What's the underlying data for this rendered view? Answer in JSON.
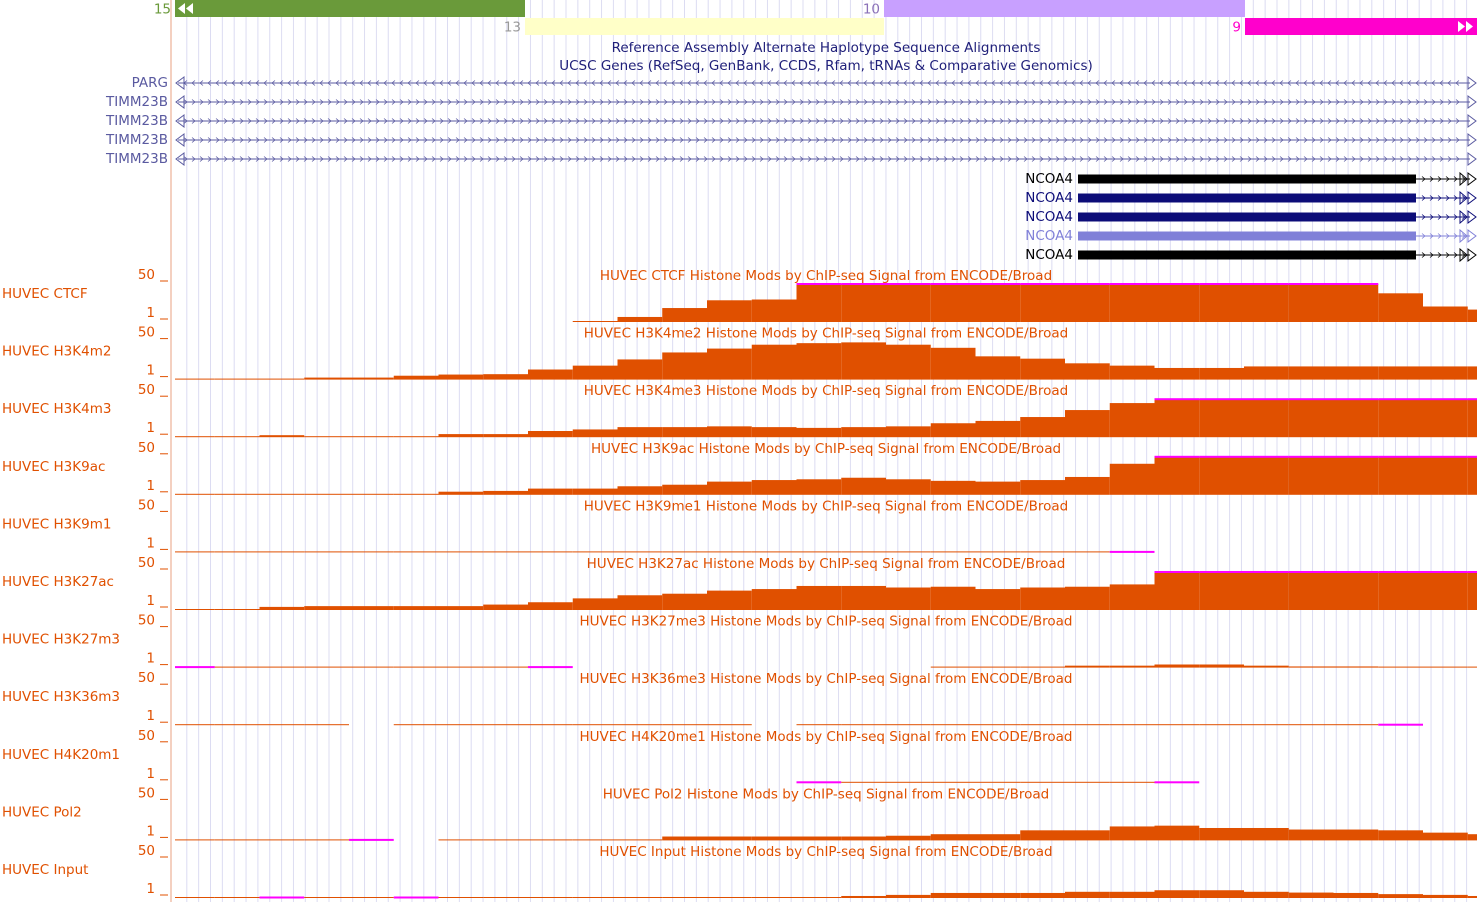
{
  "ideogram": [
    {
      "label": "15",
      "color": "#6a9a3a",
      "row": "top",
      "arrows": "left"
    },
    {
      "label": "13",
      "color": "#ffffc8",
      "row": "bottom"
    },
    {
      "label": "10",
      "color": "#c8a0ff",
      "row": "top"
    },
    {
      "label": "9",
      "color": "#ff00cc",
      "row": "bottom",
      "arrows": "right"
    }
  ],
  "haplotype_title": "Reference Assembly Alternate Haplotype Sequence Alignments",
  "genes_title": "UCSC Genes (RefSeq, GenBank, CCDS, Rfam, tRNAs & Comparative Genomics)",
  "genes": [
    {
      "name": "PARG",
      "color": "#5a5aa0"
    },
    {
      "name": "TIMM23B",
      "color": "#5a5aa0"
    },
    {
      "name": "TIMM23B",
      "color": "#5a5aa0"
    },
    {
      "name": "TIMM23B",
      "color": "#5a5aa0"
    },
    {
      "name": "TIMM23B",
      "color": "#5a5aa0"
    }
  ],
  "ncoa4_genes": [
    {
      "name": "NCOA4",
      "color": "#000000"
    },
    {
      "name": "NCOA4",
      "color": "#0c0c78"
    },
    {
      "name": "NCOA4",
      "color": "#0c0c78"
    },
    {
      "name": "NCOA4",
      "color": "#8080d8"
    },
    {
      "name": "NCOA4",
      "color": "#000000"
    }
  ],
  "signal_color": "#e05000",
  "clip_color": "#ff00ff",
  "ylim": [
    1,
    50
  ],
  "signal_tracks": [
    {
      "label": "HUVEC CTCF",
      "title": "HUVEC CTCF Histone Mods by ChIP-seq Signal from ENCODE/Broad",
      "values": [
        null,
        null,
        null,
        null,
        null,
        null,
        null,
        null,
        null,
        1.2,
        7.5,
        19,
        29,
        30,
        60,
        60,
        60,
        60,
        60,
        60,
        60,
        60,
        60,
        60,
        60,
        60,
        60,
        38,
        21,
        17
      ]
    },
    {
      "label": "HUVEC H3K4m2",
      "title": "HUVEC H3K4me2 Histone Mods by ChIP-seq Signal from ENCODE/Broad",
      "values": [
        1,
        1,
        1,
        3.6,
        3.6,
        6,
        7.5,
        8,
        14,
        19,
        27,
        36,
        41,
        46,
        48,
        49,
        46,
        42,
        31,
        28,
        22,
        19,
        16,
        16,
        18,
        18,
        18,
        18,
        18,
        18
      ]
    },
    {
      "label": "HUVEC H3K4m3",
      "title": "HUVEC H3K4me3 Histone Mods by ChIP-seq Signal from ENCODE/Broad",
      "values": [
        1,
        1,
        3.6,
        1,
        1,
        1,
        5,
        5,
        9,
        11,
        14,
        14,
        15,
        14,
        13,
        14,
        15,
        19,
        22,
        27,
        36,
        45,
        60,
        60,
        60,
        60,
        60,
        60,
        60,
        60
      ]
    },
    {
      "label": "HUVEC H3K9ac",
      "title": "HUVEC H3K9ac Histone Mods by ChIP-seq Signal from ENCODE/Broad",
      "values": [
        1,
        1,
        1,
        1,
        1,
        1,
        5,
        6,
        9,
        9,
        12,
        14,
        18,
        20,
        21,
        23,
        21,
        19,
        18,
        20,
        24,
        41,
        60,
        60,
        60,
        60,
        60,
        60,
        60,
        60
      ]
    },
    {
      "label": "HUVEC H3K9m1",
      "title": "HUVEC H3K9me1 Histone Mods by ChIP-seq Signal from ENCODE/Broad",
      "values": [
        1,
        1,
        1,
        1,
        1,
        1,
        1,
        1,
        1,
        1,
        1,
        1,
        1,
        1,
        1,
        1,
        1,
        1,
        1,
        1,
        1,
        0,
        null,
        null,
        null,
        null,
        null,
        null,
        null,
        null
      ]
    },
    {
      "label": "HUVEC H3K27ac",
      "title": "HUVEC H3K27ac Histone Mods by ChIP-seq Signal from ENCODE/Broad",
      "values": [
        1,
        1,
        5,
        6,
        6,
        6,
        6,
        8,
        11,
        16,
        20,
        22,
        26,
        28,
        32,
        32,
        30,
        31,
        28,
        30,
        31,
        34,
        60,
        60,
        60,
        60,
        60,
        60,
        60,
        60
      ]
    },
    {
      "label": "HUVEC H3K27m3",
      "title": "HUVEC H3K27me3 Histone Mods by ChIP-seq Signal from ENCODE/Broad",
      "values": [
        0,
        1,
        1,
        1,
        1,
        1,
        1,
        1,
        0,
        null,
        null,
        null,
        null,
        null,
        null,
        null,
        null,
        1,
        1,
        1,
        3.5,
        3.5,
        5,
        5,
        3.5,
        2.5,
        2.5,
        1,
        1,
        1
      ]
    },
    {
      "label": "HUVEC H3K36m3",
      "title": "HUVEC H3K36me3 Histone Mods by ChIP-seq Signal from ENCODE/Broad",
      "values": [
        1,
        1,
        1,
        1,
        null,
        1,
        1,
        1,
        1,
        1,
        1,
        1,
        1,
        null,
        1,
        1,
        1,
        1,
        1,
        1,
        1,
        1,
        1,
        1,
        1,
        1,
        1,
        0,
        null,
        null
      ]
    },
    {
      "label": "HUVEC H4K20m1",
      "title": "HUVEC H4K20me1 Histone Mods by ChIP-seq Signal from ENCODE/Broad",
      "values": [
        null,
        null,
        null,
        null,
        null,
        null,
        null,
        null,
        null,
        null,
        null,
        null,
        null,
        null,
        0,
        1,
        1,
        1,
        1,
        1,
        1,
        1,
        0,
        null,
        null,
        null,
        null,
        null,
        null,
        null
      ]
    },
    {
      "label": "HUVEC Pol2",
      "title": "HUVEC Pol2 Histone Mods by ChIP-seq Signal from ENCODE/Broad",
      "values": [
        1,
        1,
        1,
        1,
        0,
        null,
        1,
        1,
        1,
        1,
        1,
        6,
        6,
        6,
        6,
        6,
        7,
        9,
        9,
        14,
        14,
        19,
        20,
        17,
        17,
        15,
        15,
        14,
        11,
        9
      ]
    },
    {
      "label": "HUVEC Input",
      "title": "HUVEC Input Histone Mods by ChIP-seq Signal from ENCODE/Broad",
      "values": [
        1,
        1,
        0,
        1,
        1,
        0,
        1,
        1,
        1,
        1,
        1,
        1,
        1,
        1,
        1,
        3.6,
        5,
        7.5,
        7.5,
        7.5,
        9,
        9,
        11,
        11,
        9,
        8,
        7.5,
        6,
        5,
        3.6
      ]
    }
  ]
}
